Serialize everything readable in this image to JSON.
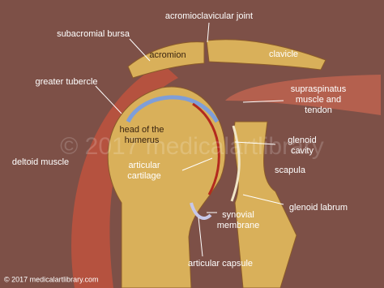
{
  "labels": {
    "acromioclavicular_joint": "acromioclavicular joint",
    "subacromial_bursa": "subacromial bursa",
    "acromion": "acromion",
    "clavicle": "clavicle",
    "greater_tubercle": "greater tubercle",
    "supraspinatus": [
      "supraspinatus",
      "muscle and",
      "tendon"
    ],
    "head_of_humerus": [
      "head of the",
      "humerus"
    ],
    "glenoid_cavity": [
      "glenoid",
      "cavity"
    ],
    "articular_cartilage": [
      "articular",
      "cartilage"
    ],
    "deltoid_muscle": "deltoid muscle",
    "scapula": "scapula",
    "glenoid_labrum": "glenoid labrum",
    "synovial_membrane": [
      "synovial",
      "membrane"
    ],
    "articular_capsule": "articular capsule"
  },
  "watermark": "© 2017 medicalartlibrary",
  "copyright": "© 2017 medicalartlibrary.com"
}
